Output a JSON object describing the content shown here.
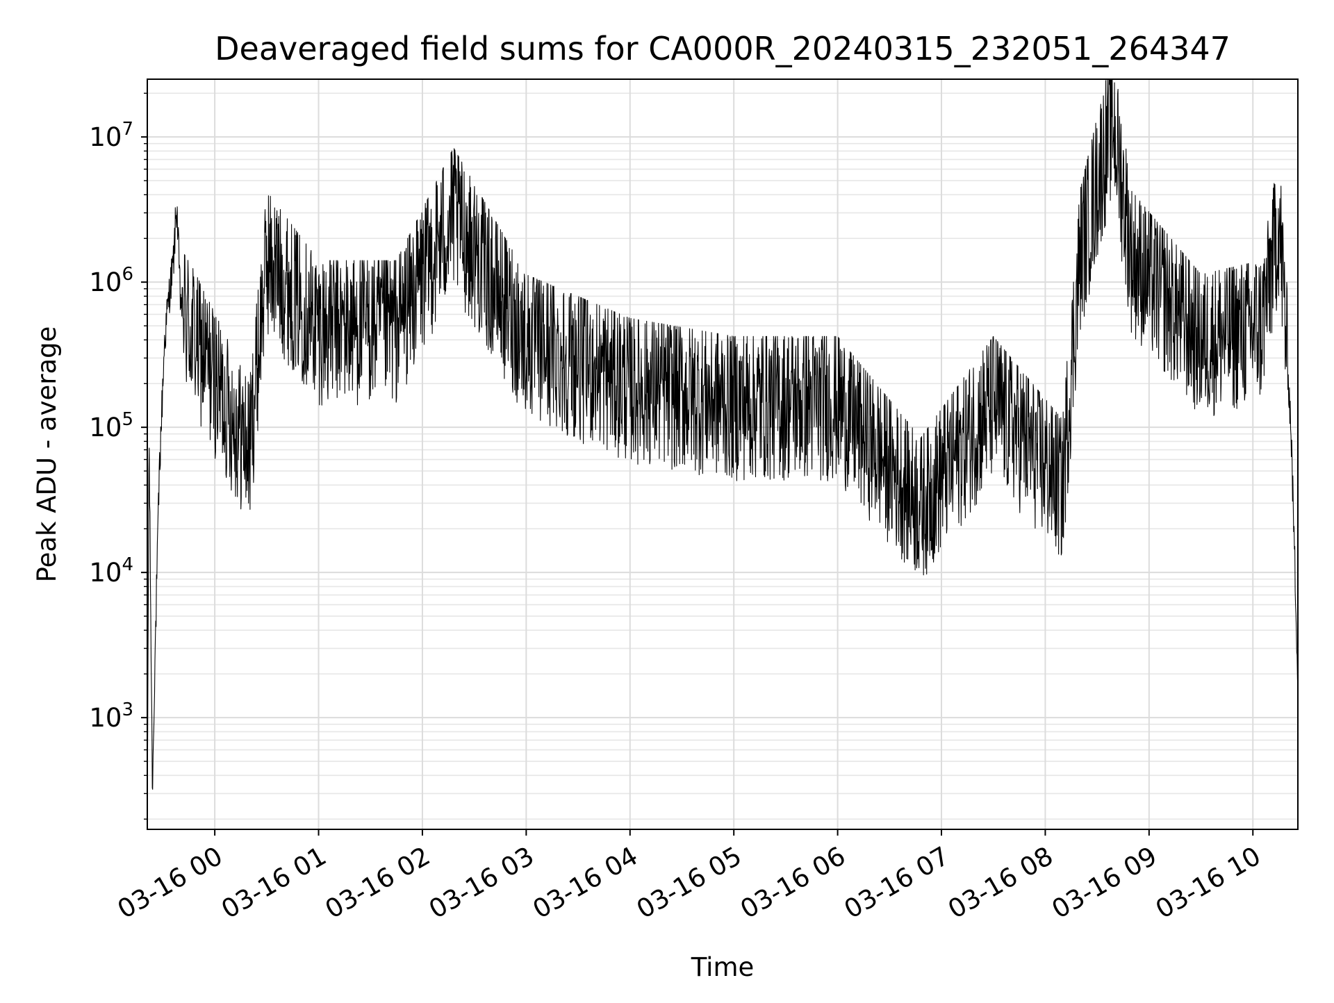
{
  "chart_data": {
    "type": "line",
    "title": "Deaveraged field sums for CA000R_20240315_232051_264347",
    "xlabel": "Time",
    "ylabel": "Peak ADU - average",
    "xlim": [
      "2024-03-15 23:21",
      "2024-03-16 10:26"
    ],
    "ylim": [
      170,
      25000000
    ],
    "yscale": "log",
    "grid": {
      "major": true,
      "minor_y": true
    },
    "line_color": "#000000",
    "x_tick_labels": [
      "03-16 00",
      "03-16 01",
      "03-16 02",
      "03-16 03",
      "03-16 04",
      "03-16 05",
      "03-16 06",
      "03-16 07",
      "03-16 08",
      "03-16 09",
      "03-16 10"
    ],
    "y_ticks": [
      {
        "value": 1000,
        "base": "10",
        "exp": "3"
      },
      {
        "value": 10000,
        "base": "10",
        "exp": "4"
      },
      {
        "value": 100000,
        "base": "10",
        "exp": "5"
      },
      {
        "value": 1000000,
        "base": "10",
        "exp": "6"
      },
      {
        "value": 10000000,
        "base": "10",
        "exp": "7"
      }
    ],
    "series": [
      {
        "x": [
          "2024-03-15 23:21",
          "2024-03-15 23:22",
          "2024-03-15 23:24",
          "2024-03-15 23:25",
          "2024-03-15 23:28",
          "2024-03-15 23:31",
          "2024-03-15 23:34",
          "2024-03-15 23:36",
          "2024-03-15 23:38",
          "2024-03-15 23:40",
          "2024-03-15 23:42",
          "2024-03-16 00:20",
          "2024-03-16 00:30",
          "2024-03-16 01:00",
          "2024-03-16 01:45",
          "2024-03-16 02:18",
          "2024-03-16 03:00",
          "2024-03-16 04:00",
          "2024-03-16 05:00",
          "2024-03-16 06:00",
          "2024-03-16 06:48",
          "2024-03-16 07:30",
          "2024-03-16 08:10",
          "2024-03-16 08:20",
          "2024-03-16 08:39",
          "2024-03-16 08:50",
          "2024-03-16 09:30",
          "2024-03-16 10:05",
          "2024-03-16 10:15",
          "2024-03-16 10:18",
          "2024-03-16 10:22",
          "2024-03-16 10:26"
        ],
        "values": [
          200,
          90000,
          300,
          1500,
          50000,
          400000,
          900000,
          1300000,
          3500000,
          800000,
          600000,
          70000,
          1500000,
          500000,
          500000,
          3000000,
          400000,
          200000,
          150000,
          150000,
          30000,
          150000,
          40000,
          1500000,
          14000000,
          1500000,
          400000,
          500000,
          2700000,
          800000,
          100000,
          2000
        ]
      }
    ]
  }
}
